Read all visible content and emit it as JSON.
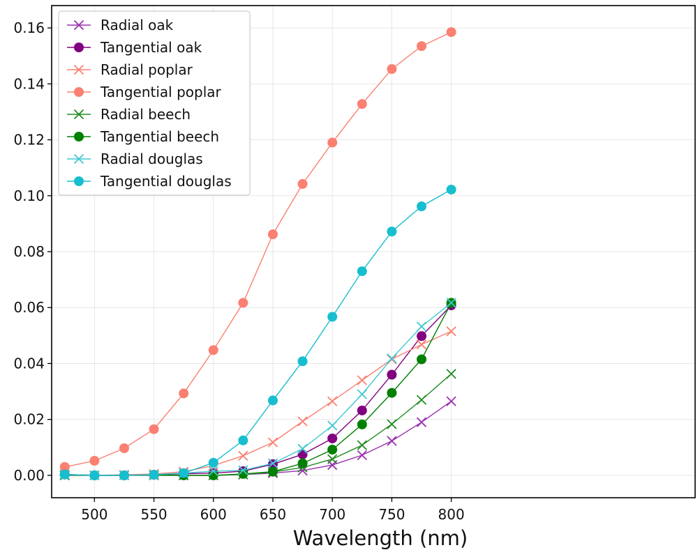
{
  "chart_data": {
    "type": "line",
    "title": "",
    "xlabel": "Wavelength (nm)",
    "ylabel": "",
    "xlim": [
      464,
      1005
    ],
    "ylim": [
      -0.008,
      0.168
    ],
    "x_ticks": [
      500,
      550,
      600,
      650,
      700,
      750,
      800
    ],
    "y_ticks": [
      0.0,
      0.02,
      0.04,
      0.06,
      0.08,
      0.1,
      0.12,
      0.14,
      0.16
    ],
    "x_tick_labels": [
      "500",
      "550",
      "600",
      "650",
      "700",
      "750",
      "800"
    ],
    "y_tick_labels": [
      "0.00",
      "0.02",
      "0.04",
      "0.06",
      "0.08",
      "0.10",
      "0.12",
      "0.14",
      "0.16"
    ],
    "grid": true,
    "legend_position": "upper-left",
    "x": [
      475,
      500,
      525,
      550,
      575,
      600,
      625,
      650,
      675,
      700,
      725,
      750,
      775,
      800
    ],
    "series": [
      {
        "name": "Radial oak",
        "color": "#9b30b0",
        "marker": "x",
        "values": [
          0.0,
          0.0,
          0.0,
          0.0,
          0.0,
          0.0,
          0.0003,
          0.0008,
          0.0017,
          0.0037,
          0.0072,
          0.0123,
          0.019,
          0.0265
        ]
      },
      {
        "name": "Tangential oak",
        "color": "#800080",
        "marker": "o",
        "values": [
          0.0003,
          0.0,
          0.0,
          0.0002,
          0.0006,
          0.0008,
          0.0015,
          0.004,
          0.0075,
          0.0132,
          0.0232,
          0.036,
          0.0498,
          0.0608
        ]
      },
      {
        "name": "Radial poplar",
        "color": "#fa8072",
        "marker": "x",
        "values": [
          0.0003,
          0.0,
          0.0002,
          0.0005,
          0.0013,
          0.0035,
          0.007,
          0.0118,
          0.0193,
          0.0265,
          0.034,
          0.0415,
          0.0468,
          0.0515
        ]
      },
      {
        "name": "Tangential poplar",
        "color": "#fa8072",
        "marker": "o",
        "values": [
          0.003,
          0.0052,
          0.0097,
          0.0165,
          0.0293,
          0.0448,
          0.0617,
          0.0862,
          0.1042,
          0.119,
          0.1328,
          0.1453,
          0.1535,
          0.1585
        ]
      },
      {
        "name": "Radial beech",
        "color": "#228b22",
        "marker": "x",
        "values": [
          0.0,
          0.0,
          0.0,
          0.0,
          0.0,
          0.0,
          0.0003,
          0.0012,
          0.0028,
          0.0058,
          0.0108,
          0.0183,
          0.027,
          0.0363
        ]
      },
      {
        "name": "Tangential beech",
        "color": "#008000",
        "marker": "o",
        "values": [
          0.0003,
          0.0,
          0.0,
          0.0002,
          0.0,
          0.0,
          0.0005,
          0.0013,
          0.0043,
          0.0092,
          0.0182,
          0.0295,
          0.0415,
          0.0617
        ]
      },
      {
        "name": "Radial douglas",
        "color": "#40c8d0",
        "marker": "x",
        "values": [
          0.0003,
          0.0,
          0.0,
          0.0002,
          0.0008,
          0.0015,
          0.0018,
          0.0043,
          0.0095,
          0.0178,
          0.029,
          0.0418,
          0.0532,
          0.0617
        ]
      },
      {
        "name": "Tangential douglas",
        "color": "#17becf",
        "marker": "o",
        "values": [
          0.0003,
          0.0,
          0.0,
          0.0002,
          0.0008,
          0.0045,
          0.0125,
          0.0268,
          0.0408,
          0.0567,
          0.073,
          0.0872,
          0.0962,
          0.1022
        ]
      }
    ]
  }
}
